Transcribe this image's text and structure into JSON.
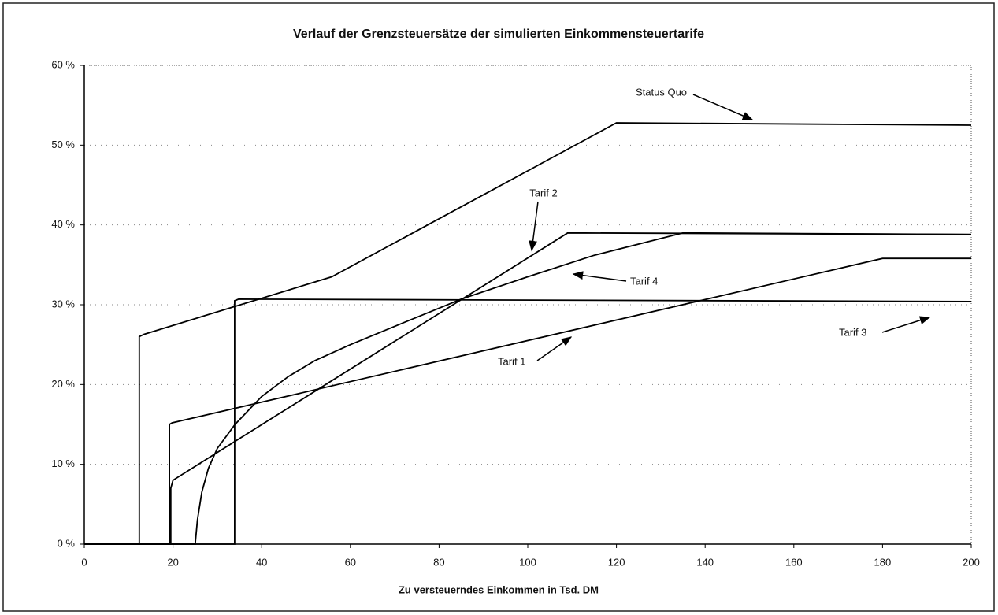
{
  "chart_data": {
    "type": "line",
    "title": "Verlauf der Grenzsteuersätze der simulierten Einkommensteuertarife",
    "xlabel": "Zu versteuerndes Einkommen in Tsd. DM",
    "xlim": [
      0,
      200
    ],
    "xticks": [
      0,
      20,
      40,
      60,
      80,
      100,
      120,
      140,
      160,
      180,
      200
    ],
    "ylim": [
      0,
      60
    ],
    "yticks": [
      {
        "value": 0,
        "label": "0 %"
      },
      {
        "value": 10,
        "label": "10 %"
      },
      {
        "value": 20,
        "label": "20 %"
      },
      {
        "value": 30,
        "label": "30 %"
      },
      {
        "value": 40,
        "label": "40 %"
      },
      {
        "value": 50,
        "label": "50 %"
      },
      {
        "value": 60,
        "label": "60 %"
      }
    ],
    "grid": true,
    "series": [
      {
        "name": "Status Quo",
        "color": "#000000",
        "x": [
          0,
          12.4,
          12.4,
          13.5,
          55.8,
          120,
          200
        ],
        "values": [
          0,
          0,
          26,
          26.3,
          33.5,
          52.8,
          52.5
        ]
      },
      {
        "name": "Tarif 2",
        "color": "#000000",
        "x": [
          0,
          19.5,
          19.5,
          20,
          109,
          200
        ],
        "values": [
          0,
          0,
          7,
          8,
          39,
          38.8
        ]
      },
      {
        "name": "Tarif 4",
        "color": "#000000",
        "x": [
          0,
          25,
          25.5,
          26.5,
          28,
          30,
          34,
          40,
          46,
          52,
          60,
          70,
          85,
          100,
          115,
          135,
          200
        ],
        "values": [
          0,
          0,
          3,
          6.5,
          9.5,
          12,
          15,
          18.5,
          21,
          23,
          25,
          27.3,
          30.7,
          33.5,
          36.2,
          39,
          38.8
        ]
      },
      {
        "name": "Tarif 1",
        "color": "#000000",
        "x": [
          0,
          19.2,
          19.2,
          19.8,
          180,
          200
        ],
        "values": [
          0,
          0,
          15,
          15.2,
          35.8,
          35.8
        ]
      },
      {
        "name": "Tarif 3",
        "color": "#000000",
        "x": [
          0,
          33.9,
          33.9,
          34.8,
          200
        ],
        "values": [
          0,
          0,
          30.5,
          30.7,
          30.4
        ]
      }
    ]
  }
}
